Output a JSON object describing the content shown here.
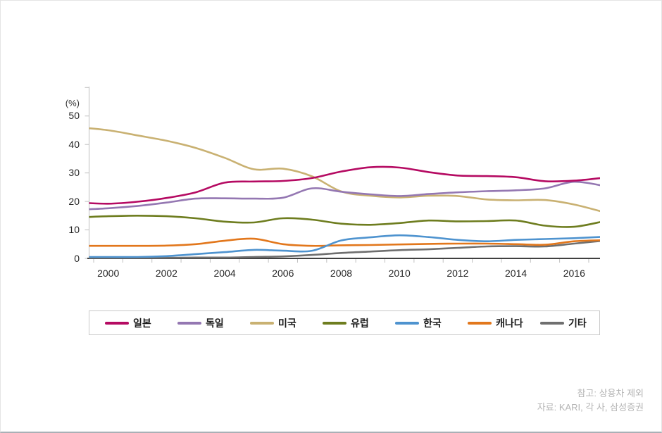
{
  "chart_data": {
    "type": "line",
    "title": "",
    "unit_label": "(%)",
    "xlabel": "",
    "ylabel": "(%)",
    "x": [
      1999,
      2000,
      2001,
      2002,
      2003,
      2004,
      2005,
      2006,
      2007,
      2008,
      2009,
      2010,
      2011,
      2012,
      2013,
      2014,
      2015,
      2016,
      2017
    ],
    "x_label_years": [
      2000,
      2002,
      2004,
      2006,
      2008,
      2010,
      2012,
      2014,
      2016
    ],
    "x_tick_labels": [
      "2000",
      "2002",
      "2004",
      "2006",
      "2008",
      "2010",
      "2012",
      "2014",
      "2016"
    ],
    "y_ticks": [
      0,
      10,
      20,
      30,
      40,
      50
    ],
    "y_tick_labels": [
      "0",
      "10",
      "20",
      "30",
      "40",
      "50"
    ],
    "ylim": [
      0,
      60
    ],
    "xlim": [
      1999.35,
      2016.87
    ],
    "grid": "off",
    "legend_position": "bottom, boxed, horizontal",
    "series": [
      {
        "name": "일본",
        "color": "#b50a62",
        "values": [
          19.6,
          19.2,
          19.9,
          21.2,
          23.2,
          26.6,
          27.0,
          27.2,
          28.2,
          30.5,
          32.0,
          31.9,
          30.3,
          29.1,
          28.9,
          28.5,
          27.1,
          27.3,
          28.3
        ]
      },
      {
        "name": "독일",
        "color": "#9477b2",
        "values": [
          17.1,
          17.6,
          18.4,
          19.6,
          21.0,
          21.1,
          21.0,
          21.3,
          24.6,
          23.4,
          22.5,
          21.9,
          22.6,
          23.2,
          23.6,
          23.9,
          24.6,
          26.9,
          25.5
        ]
      },
      {
        "name": "미국",
        "color": "#c9b172",
        "values": [
          46.0,
          45.0,
          43.2,
          41.3,
          38.8,
          35.3,
          31.3,
          31.5,
          28.8,
          23.5,
          22.0,
          21.4,
          22.0,
          21.9,
          20.7,
          20.4,
          20.5,
          18.9,
          16.3
        ]
      },
      {
        "name": "유럽",
        "color": "#6e7d1f",
        "values": [
          14.4,
          14.8,
          15.0,
          14.8,
          14.1,
          12.9,
          12.6,
          14.1,
          13.6,
          12.2,
          11.8,
          12.4,
          13.3,
          13.0,
          13.1,
          13.3,
          11.5,
          11.1,
          13.0
        ]
      },
      {
        "name": "한국",
        "color": "#4e93cf",
        "values": [
          0.5,
          0.5,
          0.5,
          0.8,
          1.5,
          2.2,
          3.0,
          2.7,
          2.7,
          6.3,
          7.4,
          8.1,
          7.5,
          6.5,
          6.0,
          6.5,
          6.8,
          7.1,
          7.6
        ]
      },
      {
        "name": "캐나다",
        "color": "#e2771c",
        "values": [
          4.4,
          4.4,
          4.4,
          4.5,
          5.0,
          6.2,
          6.9,
          5.0,
          4.4,
          4.6,
          4.7,
          4.9,
          5.1,
          5.2,
          5.2,
          5.0,
          4.8,
          6.0,
          6.4
        ]
      },
      {
        "name": "기타",
        "color": "#6f6f6f",
        "values": [
          0.2,
          0.2,
          0.2,
          0.2,
          0.3,
          0.3,
          0.5,
          0.7,
          1.2,
          1.9,
          2.4,
          2.9,
          3.2,
          3.7,
          4.2,
          4.3,
          4.2,
          5.2,
          6.2
        ]
      }
    ]
  },
  "notes": {
    "line1": "참고: 상용차 제외",
    "line2": "자료: KARI, 각 사, 삼성증권"
  }
}
